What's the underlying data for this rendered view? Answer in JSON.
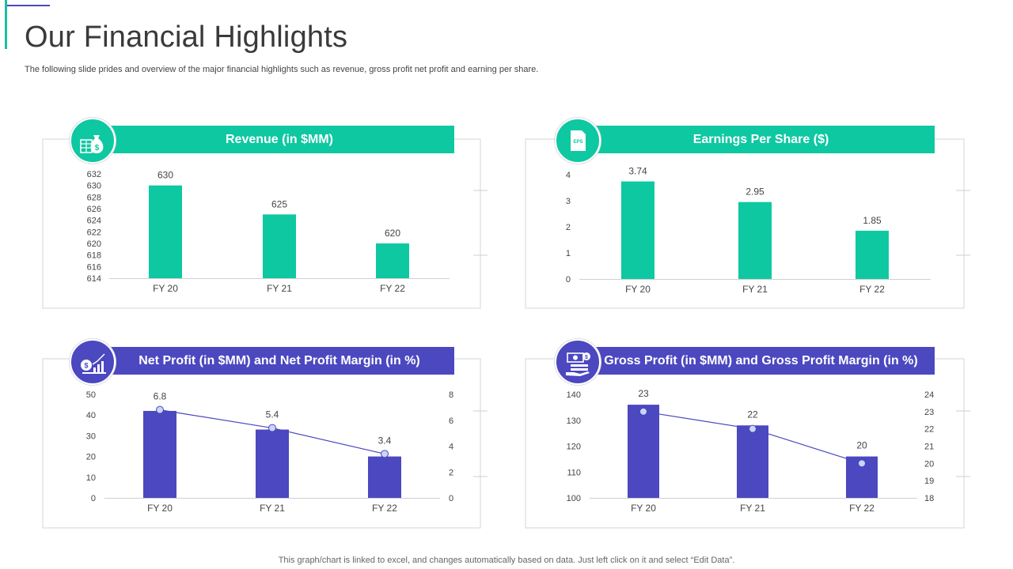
{
  "page": {
    "title": "Our Financial Highlights",
    "subtitle": "The following slide prides and overview of the major financial highlights such as revenue, gross profit net profit and earning per share.",
    "footnote": "This graph/chart is linked to excel,  and changes automatically based on data. Just left click on it and select “Edit Data”."
  },
  "colors": {
    "teal": "#0ec8a2",
    "purple": "#4b48c0",
    "line": "#4b48c0",
    "marker": "#c9d6f5"
  },
  "icons": {
    "revenue": "money-bag-icon",
    "eps": "eps-document-icon",
    "net_profit": "growth-chart-icon",
    "gross_profit": "cash-hand-icon"
  },
  "chart_data": [
    {
      "type": "bar",
      "title": "Revenue (in $MM)",
      "categories": [
        "FY 20",
        "FY 21",
        "FY 22"
      ],
      "values": [
        630,
        625,
        620
      ],
      "data_labels": [
        "630",
        "625",
        "620"
      ],
      "ylim": [
        614,
        632
      ],
      "yticks": [
        "632",
        "630",
        "628",
        "626",
        "624",
        "622",
        "620",
        "618",
        "616",
        "614"
      ]
    },
    {
      "type": "bar",
      "title": "Earnings Per Share ($)",
      "categories": [
        "FY 20",
        "FY 21",
        "FY 22"
      ],
      "values": [
        3.74,
        2.95,
        1.85
      ],
      "data_labels": [
        "3.74",
        "2.95",
        "1.85"
      ],
      "ylim": [
        0,
        4
      ],
      "yticks": [
        "4",
        "3",
        "2",
        "1",
        "0"
      ]
    },
    {
      "type": "bar",
      "title": "Net Profit (in $MM) and Net Profit Margin (in %)",
      "categories": [
        "FY 20",
        "FY 21",
        "FY 22"
      ],
      "series": [
        {
          "name": "Net Profit (in $MM)",
          "type": "bar",
          "axis": "left",
          "values": [
            42,
            33,
            20
          ]
        },
        {
          "name": "Net Profit Margin (in %)",
          "type": "line",
          "axis": "right",
          "values": [
            6.8,
            5.4,
            3.4
          ]
        }
      ],
      "data_labels": [
        "6.8",
        "5.4",
        "3.4"
      ],
      "ylim": [
        0,
        50
      ],
      "yticks": [
        "50",
        "40",
        "30",
        "20",
        "10",
        "0"
      ],
      "y2lim": [
        0,
        8
      ],
      "y2ticks": [
        "8",
        "6",
        "4",
        "2",
        "0"
      ]
    },
    {
      "type": "bar",
      "title": "Gross Profit (in $MM) and Gross Profit Margin (in %)",
      "categories": [
        "FY 20",
        "FY 21",
        "FY 22"
      ],
      "series": [
        {
          "name": "Gross Profit (in $MM)",
          "type": "bar",
          "axis": "left",
          "values": [
            136,
            128,
            116
          ]
        },
        {
          "name": "Gross Profit Margin (in %)",
          "type": "line",
          "axis": "right",
          "values": [
            23,
            22,
            20
          ]
        }
      ],
      "data_labels": [
        "23",
        "22",
        "20"
      ],
      "ylim": [
        100,
        140
      ],
      "yticks": [
        "140",
        "130",
        "120",
        "110",
        "100"
      ],
      "y2lim": [
        18,
        24
      ],
      "y2ticks": [
        "24",
        "23",
        "22",
        "21",
        "20",
        "19",
        "18"
      ]
    }
  ]
}
